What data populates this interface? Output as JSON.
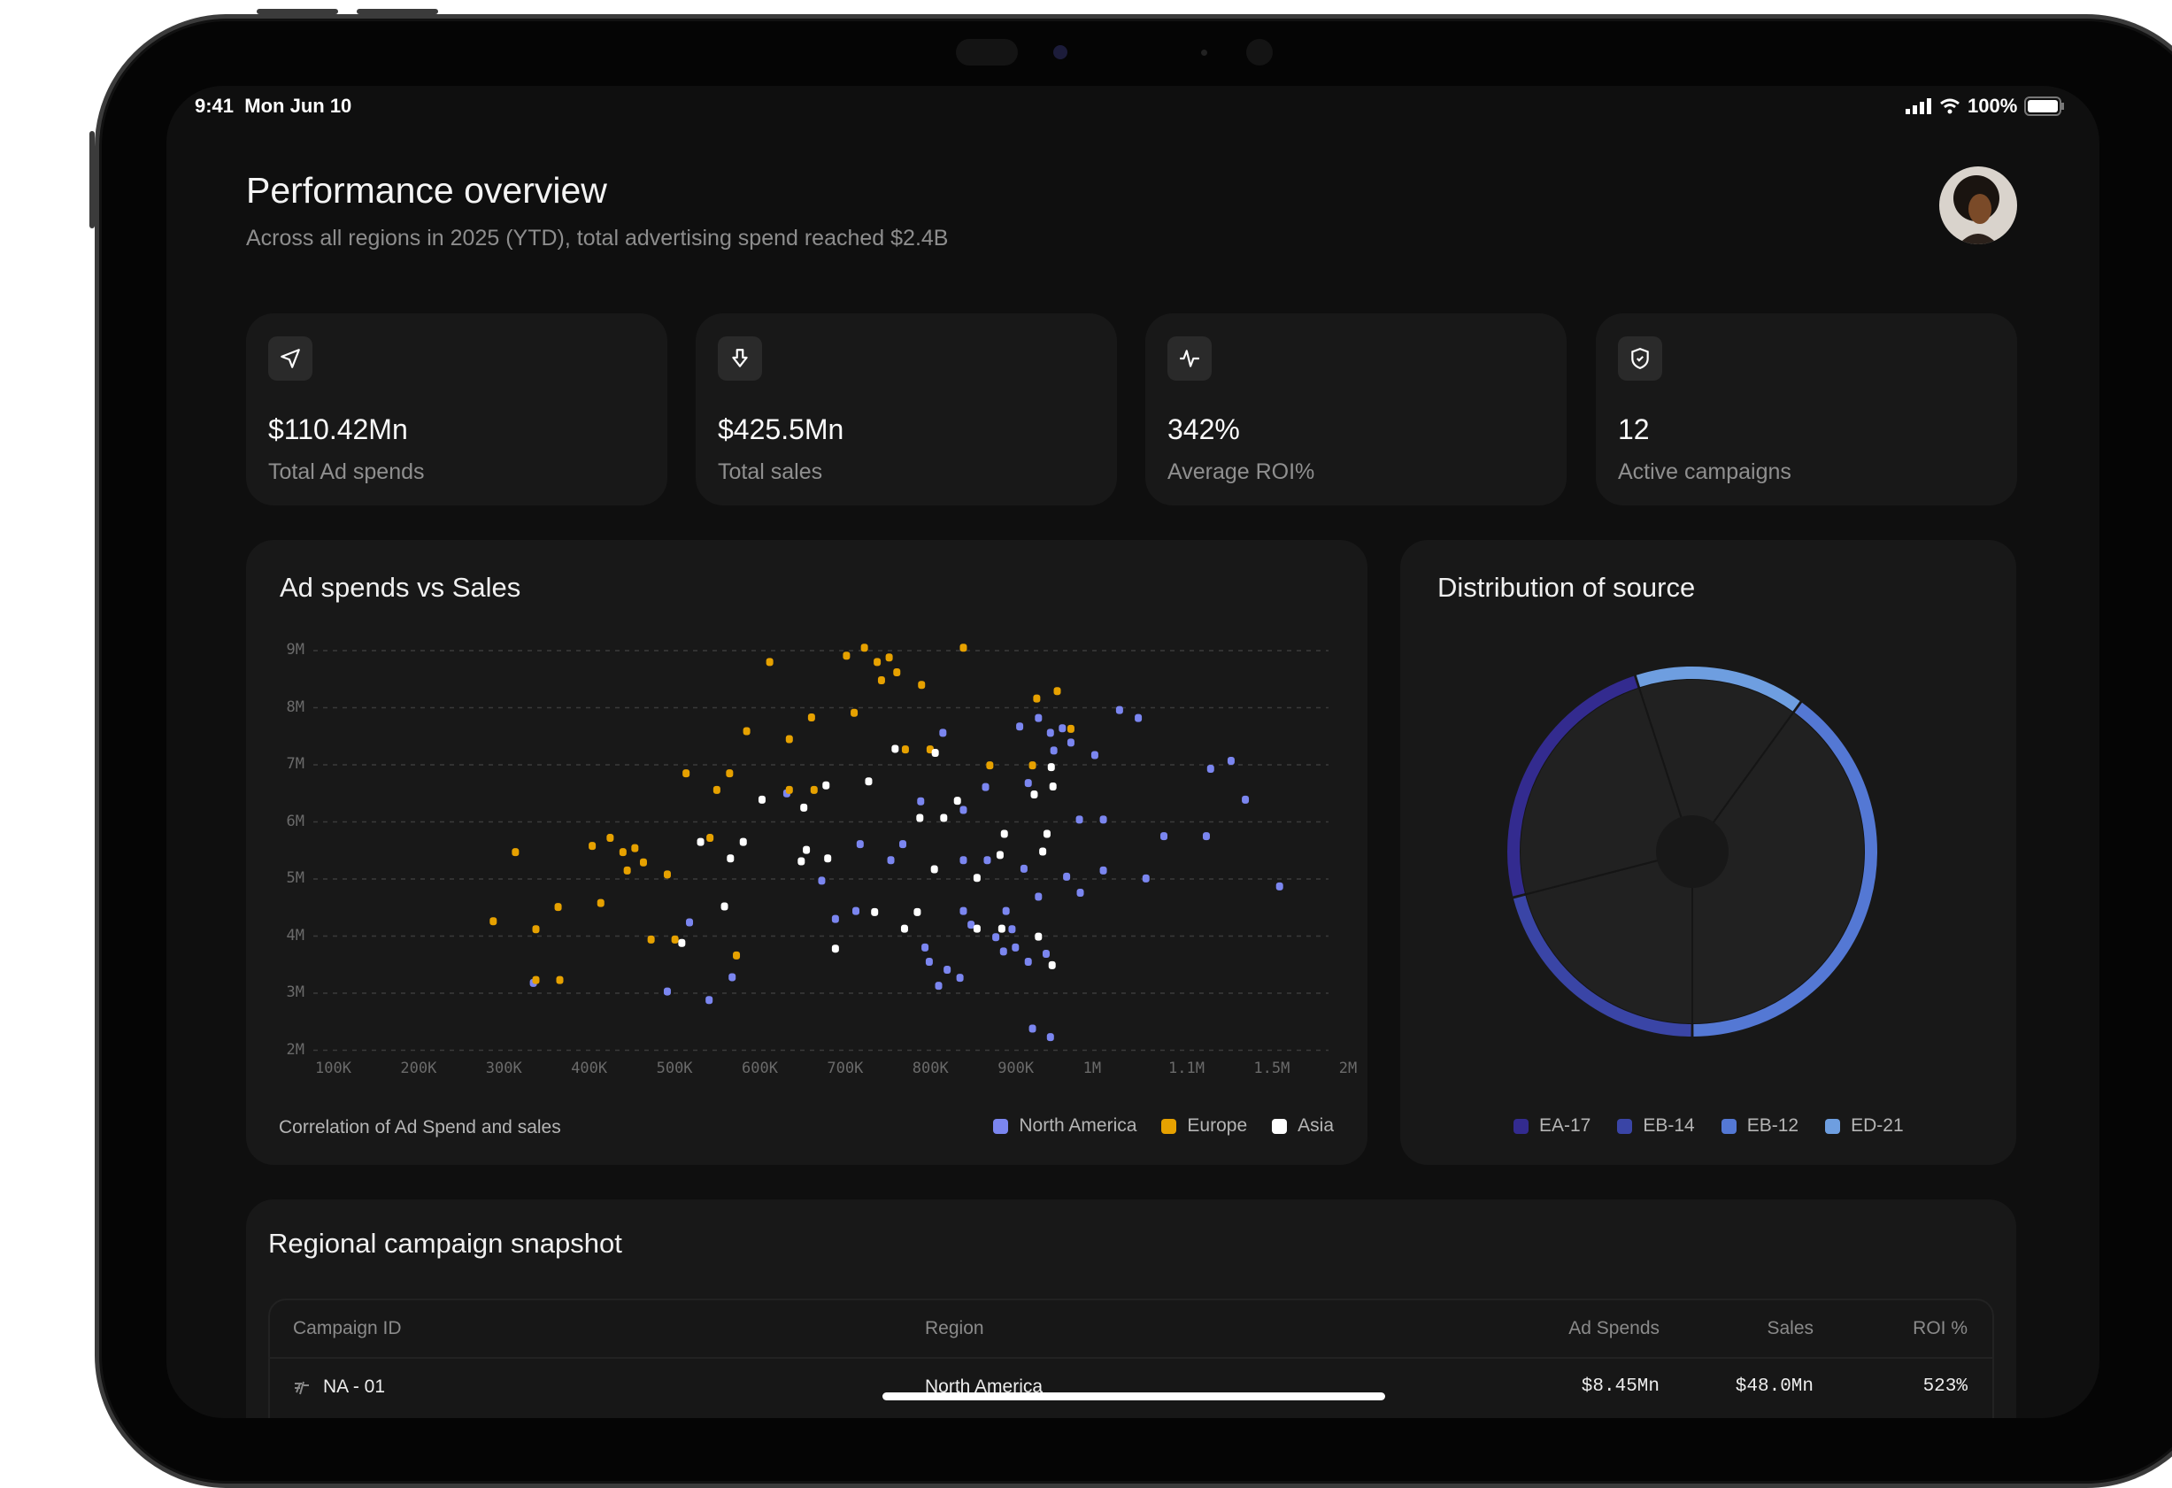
{
  "status_bar": {
    "time": "9:41",
    "date": "Mon Jun 10",
    "battery": "100%"
  },
  "header": {
    "title": "Performance overview",
    "subtitle": "Across all regions in 2025 (YTD), total advertising spend reached $2.4B"
  },
  "kpis": [
    {
      "icon": "send-icon",
      "value": "$110.42Mn",
      "label": "Total Ad spends"
    },
    {
      "icon": "arrow-down-icon",
      "value": "$425.5Mn",
      "label": "Total sales"
    },
    {
      "icon": "activity-icon",
      "value": "342%",
      "label": "Average ROI%"
    },
    {
      "icon": "shield-check-icon",
      "value": "12",
      "label": "Active campaigns"
    }
  ],
  "chart_data": [
    {
      "type": "scatter",
      "title": "Ad spends vs Sales",
      "caption": "Correlation of Ad Spend and sales",
      "x_ticks": [
        "100K",
        "200K",
        "300K",
        "400K",
        "500K",
        "600K",
        "700K",
        "800K",
        "900K",
        "1M",
        "1.1M",
        "1.5M",
        "2M"
      ],
      "x_tick_values": [
        100,
        200,
        300,
        400,
        500,
        600,
        700,
        800,
        900,
        1000,
        1100,
        1500,
        2000
      ],
      "y_ticks": [
        "9M",
        "8M",
        "7M",
        "6M",
        "5M",
        "4M",
        "3M",
        "2M"
      ],
      "y_tick_values": [
        9,
        8,
        7,
        6,
        5,
        4,
        3,
        2
      ],
      "ylim": [
        2,
        9
      ],
      "grid": "horizontal dashed",
      "legend": "bottom-right",
      "series": [
        {
          "name": "North America",
          "color": "#7b86f0",
          "points": [
            [
              1020,
              7.96
            ],
            [
              1042,
              7.82
            ],
            [
              925,
              7.82
            ],
            [
              903,
              7.67
            ],
            [
              953,
              7.64
            ],
            [
              939,
              7.56
            ],
            [
              813,
              7.56
            ],
            [
              963,
              7.39
            ],
            [
              943,
              7.25
            ],
            [
              991,
              7.17
            ],
            [
              1303,
              7.07
            ],
            [
              1207,
              6.93
            ],
            [
              913,
              6.68
            ],
            [
              863,
              6.61
            ],
            [
              630,
              6.5
            ],
            [
              1370,
              6.39
            ],
            [
              787,
              6.36
            ],
            [
              837,
              6.21
            ],
            [
              973,
              6.04
            ],
            [
              1001,
              6.04
            ],
            [
              1072,
              5.75
            ],
            [
              1187,
              5.75
            ],
            [
              716,
              5.61
            ],
            [
              766,
              5.61
            ],
            [
              752,
              5.33
            ],
            [
              837,
              5.33
            ],
            [
              865,
              5.33
            ],
            [
              908,
              5.18
            ],
            [
              1001,
              5.15
            ],
            [
              958,
              5.04
            ],
            [
              1051,
              5.01
            ],
            [
              671,
              4.97
            ],
            [
              1538,
              4.87
            ],
            [
              974,
              4.76
            ],
            [
              925,
              4.69
            ],
            [
              711,
              4.44
            ],
            [
              837,
              4.44
            ],
            [
              887,
              4.44
            ],
            [
              687,
              4.3
            ],
            [
              516,
              4.24
            ],
            [
              846,
              4.2
            ],
            [
              894,
              4.12
            ],
            [
              875,
              3.98
            ],
            [
              792,
              3.8
            ],
            [
              898,
              3.8
            ],
            [
              884,
              3.73
            ],
            [
              934,
              3.69
            ],
            [
              797,
              3.55
            ],
            [
              913,
              3.55
            ],
            [
              818,
              3.41
            ],
            [
              833,
              3.27
            ],
            [
              566,
              3.28
            ],
            [
              808,
              3.13
            ],
            [
              333,
              3.18
            ],
            [
              490,
              3.03
            ],
            [
              539,
              2.88
            ],
            [
              918,
              2.38
            ],
            [
              939,
              2.23
            ]
          ]
        },
        {
          "name": "Europe",
          "color": "#e6a100",
          "points": [
            [
              721,
              9.05
            ],
            [
              837,
              9.05
            ],
            [
              700,
              8.91
            ],
            [
              750,
              8.88
            ],
            [
              610,
              8.8
            ],
            [
              736,
              8.8
            ],
            [
              759,
              8.62
            ],
            [
              741,
              8.48
            ],
            [
              788,
              8.4
            ],
            [
              947,
              8.29
            ],
            [
              923,
              8.16
            ],
            [
              709,
              7.91
            ],
            [
              659,
              7.83
            ],
            [
              963,
              7.63
            ],
            [
              583,
              7.59
            ],
            [
              633,
              7.45
            ],
            [
              769,
              7.27
            ],
            [
              798,
              7.27
            ],
            [
              868,
              6.99
            ],
            [
              918,
              6.99
            ],
            [
              512,
              6.85
            ],
            [
              563,
              6.85
            ],
            [
              548,
              6.56
            ],
            [
              633,
              6.56
            ],
            [
              662,
              6.56
            ],
            [
              540,
              5.72
            ],
            [
              423,
              5.72
            ],
            [
              402,
              5.58
            ],
            [
              312,
              5.47
            ],
            [
              438,
              5.47
            ],
            [
              452,
              5.54
            ],
            [
              462,
              5.29
            ],
            [
              443,
              5.15
            ],
            [
              490,
              5.08
            ],
            [
              412,
              4.58
            ],
            [
              362,
              4.51
            ],
            [
              286,
              4.26
            ],
            [
              336,
              4.12
            ],
            [
              471,
              3.94
            ],
            [
              499,
              3.94
            ],
            [
              571,
              3.66
            ],
            [
              336,
              3.23
            ],
            [
              364,
              3.23
            ]
          ]
        },
        {
          "name": "Asia",
          "color": "#ffffff",
          "points": [
            [
              757,
              7.28
            ],
            [
              804,
              7.21
            ],
            [
              940,
              6.96
            ],
            [
              726,
              6.71
            ],
            [
              676,
              6.64
            ],
            [
              942,
              6.62
            ],
            [
              920,
              6.48
            ],
            [
              601,
              6.39
            ],
            [
              830,
              6.37
            ],
            [
              650,
              6.25
            ],
            [
              786,
              6.07
            ],
            [
              814,
              6.07
            ],
            [
              885,
              5.79
            ],
            [
              935,
              5.79
            ],
            [
              529,
              5.65
            ],
            [
              579,
              5.65
            ],
            [
              653,
              5.51
            ],
            [
              930,
              5.48
            ],
            [
              880,
              5.42
            ],
            [
              564,
              5.36
            ],
            [
              678,
              5.36
            ],
            [
              647,
              5.31
            ],
            [
              803,
              5.17
            ],
            [
              853,
              5.02
            ],
            [
              557,
              4.52
            ],
            [
              733,
              4.42
            ],
            [
              783,
              4.42
            ],
            [
              768,
              4.13
            ],
            [
              853,
              4.13
            ],
            [
              882,
              4.13
            ],
            [
              925,
              3.99
            ],
            [
              507,
              3.88
            ],
            [
              687,
              3.78
            ],
            [
              941,
              3.49
            ]
          ]
        }
      ]
    },
    {
      "type": "pie",
      "title": "Distribution of source",
      "style": "donut ring",
      "legend": "bottom",
      "slices": [
        {
          "name": "EA-17",
          "value": 24,
          "color": "#332b8f"
        },
        {
          "name": "EB-14",
          "value": 21,
          "color": "#3a45a6"
        },
        {
          "name": "EB-12",
          "value": 40,
          "color": "#5478d4"
        },
        {
          "name": "ED-21",
          "value": 15,
          "color": "#6e9ee0"
        }
      ],
      "start_slice": "ED-21"
    }
  ],
  "table": {
    "title": "Regional campaign snapshot",
    "columns": [
      "Campaign ID",
      "Region",
      "Ad Spends",
      "Sales",
      "ROI %"
    ],
    "rows": [
      {
        "id": "NA - 01",
        "region": "North America",
        "ad_spends": "$8.45Mn",
        "sales": "$48.0Mn",
        "roi": "523%"
      }
    ]
  }
}
